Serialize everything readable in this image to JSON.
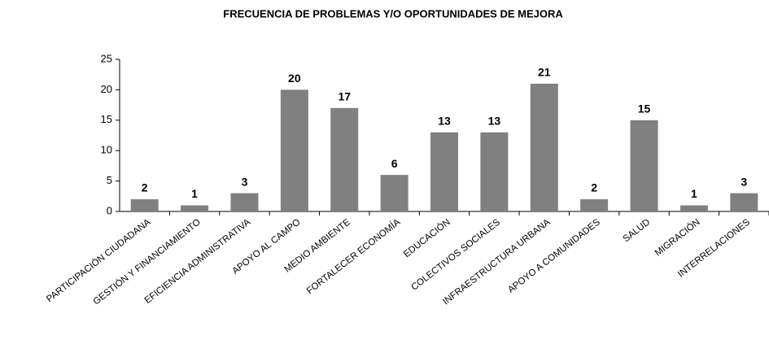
{
  "chart_data": {
    "type": "bar",
    "title": "FRECUENCIA DE PROBLEMAS Y/O OPORTUNIDADES DE MEJORA",
    "categories": [
      "PARTICIPACIÓN CIUDADANA",
      "GESTIÓN Y FINANCIAMIENTO",
      "EFICIENCIA ADMINISTRATIVA",
      "APOYO AL CAMPO",
      "MEDIO AMBIENTE",
      "FORTALECER ECONOMÍA",
      "EDUCACIÓN",
      "COLECTIVOS SOCIALES",
      "INFRAESTRUCTURA URBANA",
      "APOYO A COMUNIDADES",
      "SALUD",
      "MIGRACIÓN",
      "INTERRELACIONES"
    ],
    "values": [
      2,
      1,
      3,
      20,
      17,
      6,
      13,
      13,
      21,
      2,
      15,
      1,
      3
    ],
    "color": "#808080",
    "ylim": [
      0,
      25
    ],
    "yticks": [
      0,
      5,
      10,
      15,
      20,
      25
    ],
    "grid": false
  }
}
